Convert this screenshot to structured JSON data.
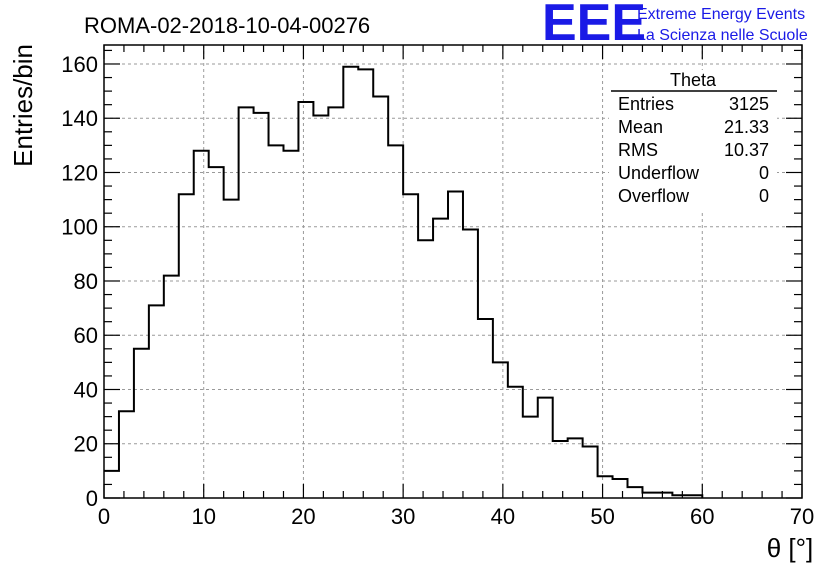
{
  "header": {
    "run_title": "ROMA-02-2018-10-04-00276",
    "logo_letters": "EEE",
    "logo_line1": "Extreme Energy Events",
    "logo_line2": "La Scienza nelle Scuole",
    "logo_color": "#1a1ae6"
  },
  "stats_box": {
    "title": "Theta",
    "rows": [
      {
        "label": "Entries",
        "value": "3125"
      },
      {
        "label": "Mean",
        "value": "21.33"
      },
      {
        "label": "RMS",
        "value": "10.37"
      },
      {
        "label": "Underflow",
        "value": "0"
      },
      {
        "label": "Overflow",
        "value": "0"
      }
    ]
  },
  "chart_data": {
    "type": "histogram",
    "title": "ROMA-02-2018-10-04-00276",
    "xlabel": "θ [°]",
    "ylabel": "Entries/bin",
    "xlim": [
      0,
      70
    ],
    "ylim": [
      0,
      167
    ],
    "bin_width": 1.5,
    "bin_edges_start": 0,
    "x_ticks": [
      0,
      10,
      20,
      30,
      40,
      50,
      60,
      70
    ],
    "y_ticks": [
      0,
      20,
      40,
      60,
      80,
      100,
      120,
      140,
      160
    ],
    "grid": true,
    "values": [
      10,
      32,
      55,
      71,
      82,
      112,
      128,
      122,
      110,
      144,
      142,
      130,
      128,
      146,
      141,
      144,
      159,
      158,
      148,
      130,
      112,
      95,
      103,
      113,
      99,
      66,
      50,
      41,
      30,
      37,
      21,
      22,
      19,
      8,
      7,
      4,
      2,
      2,
      1,
      1,
      0,
      0,
      0,
      0,
      0,
      0,
      0
    ],
    "line_color": "#000000"
  }
}
